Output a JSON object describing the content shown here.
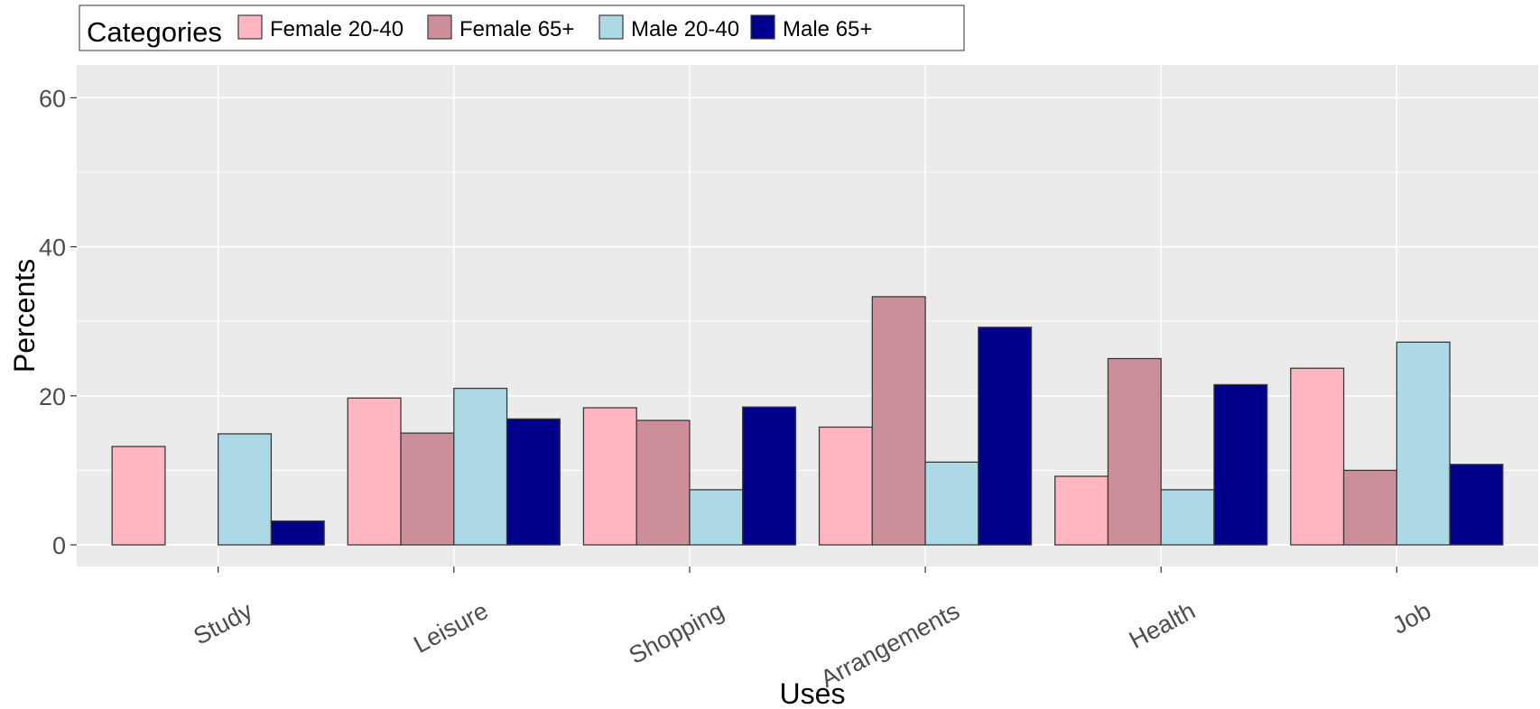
{
  "chart_data": {
    "type": "bar",
    "title": "",
    "xlabel": "Uses",
    "ylabel": "Percents",
    "categories": [
      "Study",
      "Leisure",
      "Shopping",
      "Arrangements",
      "Health",
      "Job"
    ],
    "yticks": [
      0,
      20,
      40,
      60
    ],
    "ylim": [
      -2.9,
      64.4
    ],
    "grid": true,
    "legend": {
      "title": "Categories",
      "position": "top-left"
    },
    "series": [
      {
        "name": "Female 20-40",
        "color": "#FFB6C1",
        "values": [
          13.2,
          19.7,
          18.4,
          15.8,
          9.2,
          23.7
        ]
      },
      {
        "name": "Female 65+",
        "color": "#CC8E98",
        "values": [
          0,
          15.0,
          16.7,
          33.3,
          25.0,
          10.0
        ]
      },
      {
        "name": "Male 20-40",
        "color": "#ADD8E6",
        "values": [
          14.9,
          21.0,
          7.4,
          11.1,
          7.4,
          27.2
        ]
      },
      {
        "name": "Male 65+",
        "color": "#00008B",
        "values": [
          3.2,
          16.9,
          18.5,
          29.2,
          21.5,
          10.8
        ]
      }
    ],
    "colors": {
      "panel": "#EBEBEB",
      "grid": "#FFFFFF",
      "bar_border": "#3A3A3A",
      "tick_text": "#4D4D4D",
      "axis_text": "#000000"
    }
  }
}
